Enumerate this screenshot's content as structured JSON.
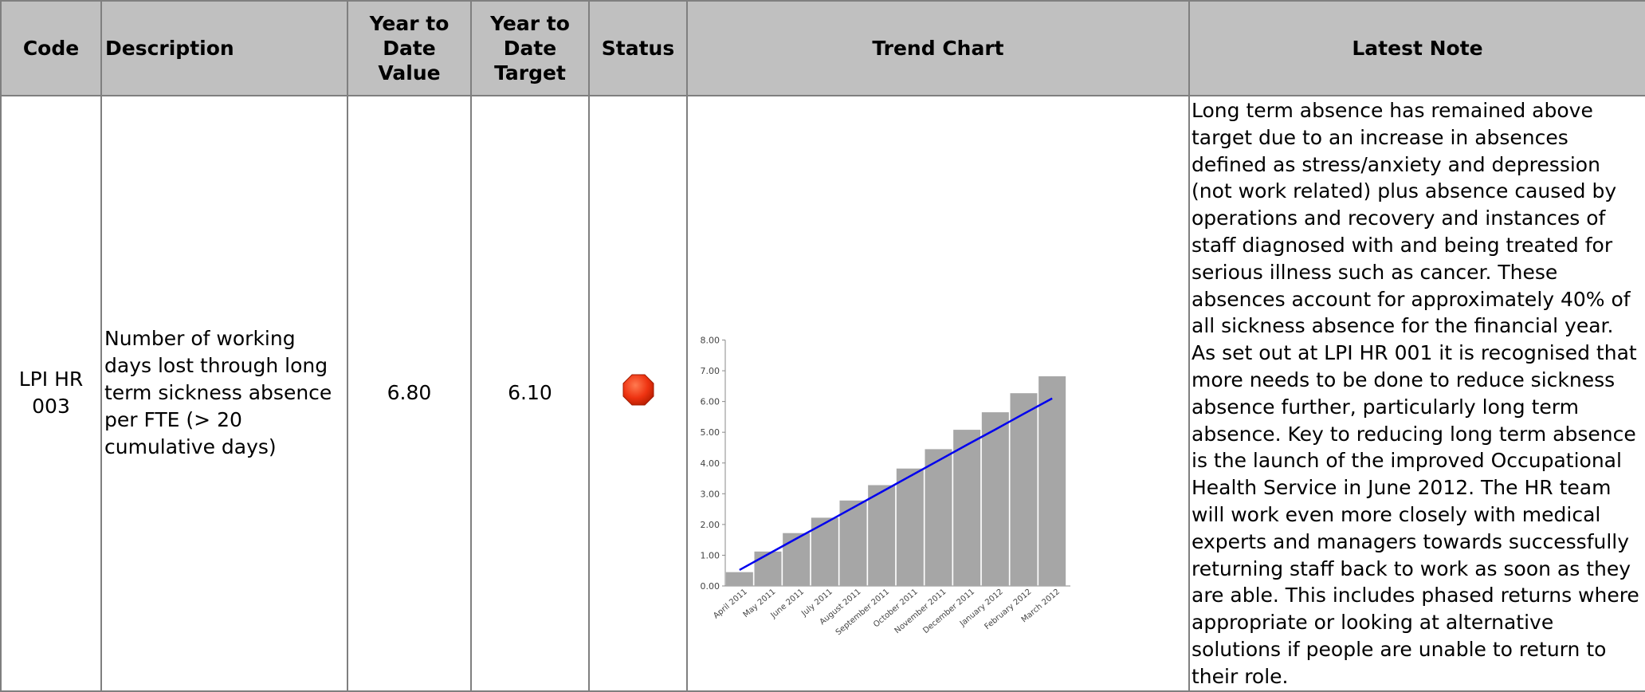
{
  "table": {
    "headers": {
      "code": "Code",
      "description": "Description",
      "ytd_value": "Year to Date Value",
      "ytd_target": "Year to Date Target",
      "status": "Status",
      "trend_chart": "Trend Chart",
      "latest_note": "Latest Note"
    },
    "row": {
      "code": "LPI HR 003",
      "description": "Number of working days lost through long term sickness absence per FTE (> 20 cumulative days)",
      "ytd_value": "6.80",
      "ytd_target": "6.10",
      "status": "red-octagon-icon",
      "latest_note": "Long term absence has remained above target due to an increase in absences defined as stress/anxiety and depression (not work related) plus absence caused by operations and recovery and instances of staff diagnosed with and being treated for serious illness such as cancer. These absences account for approximately 40% of all sickness absence for the financial year. As set out at LPI HR 001 it is recognised that more needs to be done to reduce sickness absence further, particularly long term absence.  Key to reducing long term absence is the launch of the improved Occupational Health Service in June 2012. The HR team will work even more closely with medical experts and managers towards successfully returning staff back to work as soon as they are able. This includes phased returns where appropriate or looking at alternative solutions if people are unable to return to their role."
    }
  },
  "colors": {
    "header_bg": "#c0c0c0",
    "border": "#7f7f7f",
    "bar": "#a6a6a6",
    "trend_line": "#0000ee",
    "status_red": "#ee3311"
  },
  "chart_data": {
    "type": "bar",
    "categories": [
      "April 2011",
      "May 2011",
      "June 2011",
      "July 2011",
      "August 2011",
      "September 2011",
      "October 2011",
      "November 2011",
      "December 2011",
      "January 2012",
      "February 2012",
      "March 2012"
    ],
    "series": [
      {
        "values": [
          0.45,
          1.12,
          1.72,
          2.22,
          2.78,
          3.28,
          3.82,
          4.45,
          5.08,
          5.65,
          6.27,
          6.82
        ]
      },
      {
        "type": "line",
        "values": [
          0.52,
          1.03,
          1.54,
          2.04,
          2.55,
          3.06,
          3.57,
          4.08,
          4.59,
          5.09,
          5.6,
          6.1
        ]
      }
    ],
    "yticks": [
      "0.00",
      "1.00",
      "2.00",
      "3.00",
      "4.00",
      "5.00",
      "6.00",
      "7.00",
      "8.00"
    ],
    "ylim": [
      0,
      8
    ],
    "grid": false,
    "legend": "none"
  }
}
